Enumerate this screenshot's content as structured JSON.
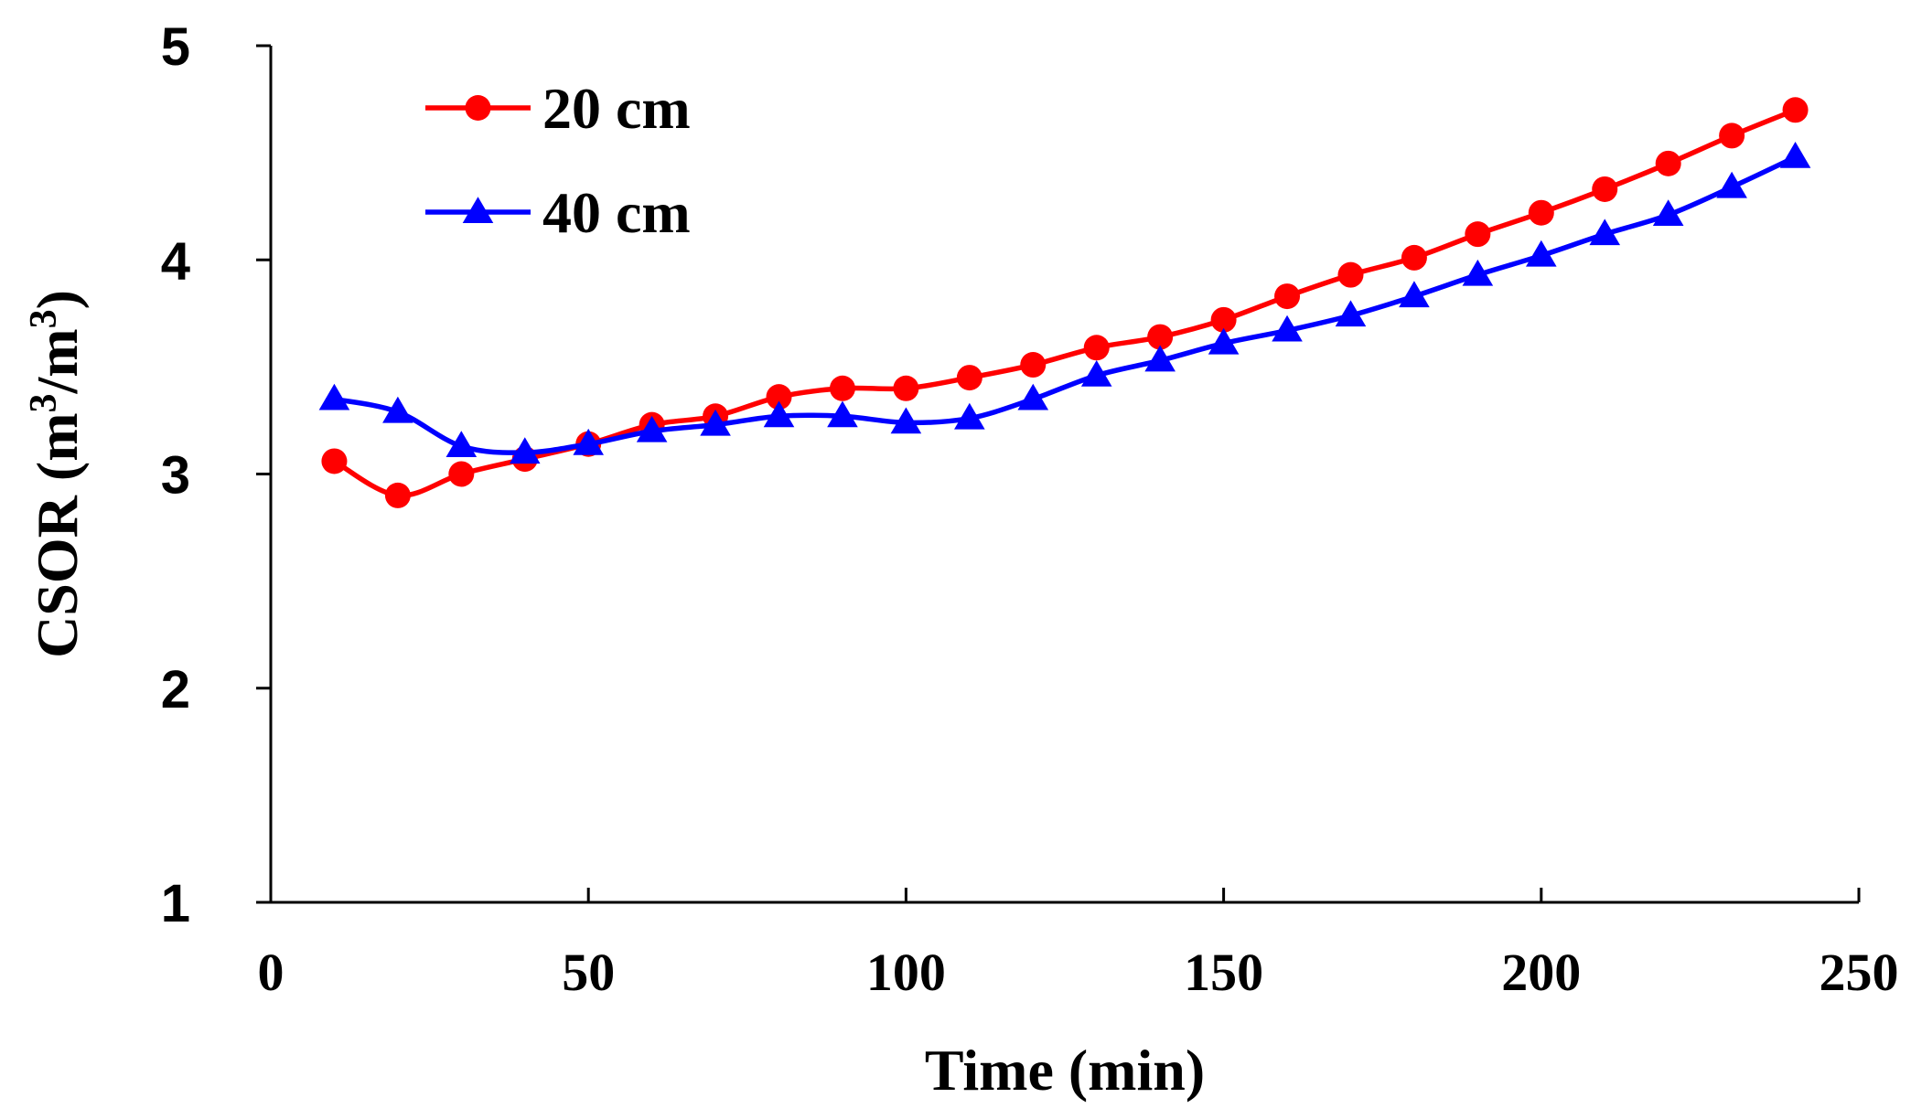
{
  "chart_data": {
    "type": "line",
    "title": "",
    "xlabel": "Time  (min)",
    "ylabel": {
      "prefix": "CSOR (m",
      "sup1": "3",
      "mid": "/m",
      "sup2": "3",
      "suffix": ")"
    },
    "xlim": [
      0,
      250
    ],
    "ylim": [
      1,
      5
    ],
    "xticks": [
      0,
      50,
      100,
      150,
      200,
      250
    ],
    "yticks": [
      1,
      2,
      3,
      4,
      5
    ],
    "grid": false,
    "legend_position": "top-left",
    "x": [
      10,
      20,
      30,
      40,
      50,
      60,
      70,
      80,
      90,
      100,
      110,
      120,
      130,
      140,
      150,
      160,
      170,
      180,
      190,
      200,
      210,
      220,
      230,
      240
    ],
    "series": [
      {
        "name": "20 cm",
        "color": "#ff0000",
        "marker": "circle",
        "values": [
          3.06,
          2.9,
          3.0,
          3.07,
          3.14,
          3.23,
          3.27,
          3.36,
          3.4,
          3.4,
          3.45,
          3.51,
          3.59,
          3.64,
          3.72,
          3.83,
          3.93,
          4.01,
          4.12,
          4.22,
          4.33,
          4.45,
          4.58,
          4.7
        ]
      },
      {
        "name": "40 cm",
        "color": "#0000ff",
        "marker": "triangle",
        "values": [
          3.35,
          3.29,
          3.13,
          3.1,
          3.14,
          3.2,
          3.23,
          3.27,
          3.27,
          3.24,
          3.26,
          3.35,
          3.46,
          3.53,
          3.61,
          3.67,
          3.74,
          3.83,
          3.93,
          4.02,
          4.12,
          4.21,
          4.34,
          4.48
        ]
      }
    ]
  }
}
